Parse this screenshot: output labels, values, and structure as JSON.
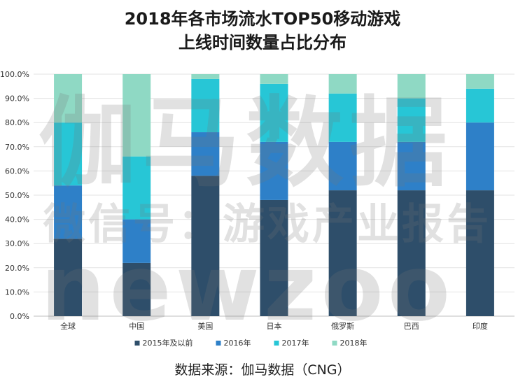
{
  "title_lines": [
    "2018年各市场流水TOP50移动游戏",
    "上线时间数量占比分布"
  ],
  "source": "数据来源：伽马数据（CNG）",
  "watermark": {
    "line1": "伽马数据",
    "line2": "微信号：游戏产业报告",
    "line3": "newzoo"
  },
  "chart_data": {
    "type": "bar",
    "stacked": true,
    "categories": [
      "全球",
      "中国",
      "美国",
      "日本",
      "俄罗斯",
      "巴西",
      "印度"
    ],
    "ylim": [
      0,
      100
    ],
    "y_ticks": [
      "0.0%",
      "10.0%",
      "20.0%",
      "30.0%",
      "40.0%",
      "50.0%",
      "60.0%",
      "70.0%",
      "80.0%",
      "90.0%",
      "100.0%"
    ],
    "grid": true,
    "legend_position": "bottom",
    "series": [
      {
        "name": "2015年及以前",
        "color": "#2e4e6a",
        "values": [
          32,
          22,
          58,
          48,
          52,
          52,
          52
        ]
      },
      {
        "name": "2016年",
        "color": "#2e80c8",
        "values": [
          22,
          18,
          18,
          24,
          20,
          20,
          28
        ]
      },
      {
        "name": "2017年",
        "color": "#27c6d6",
        "values": [
          26,
          26,
          22,
          24,
          20,
          18,
          14
        ]
      },
      {
        "name": "2018年",
        "color": "#8fd9c4",
        "values": [
          20,
          34,
          2,
          4,
          8,
          10,
          6
        ]
      }
    ]
  }
}
